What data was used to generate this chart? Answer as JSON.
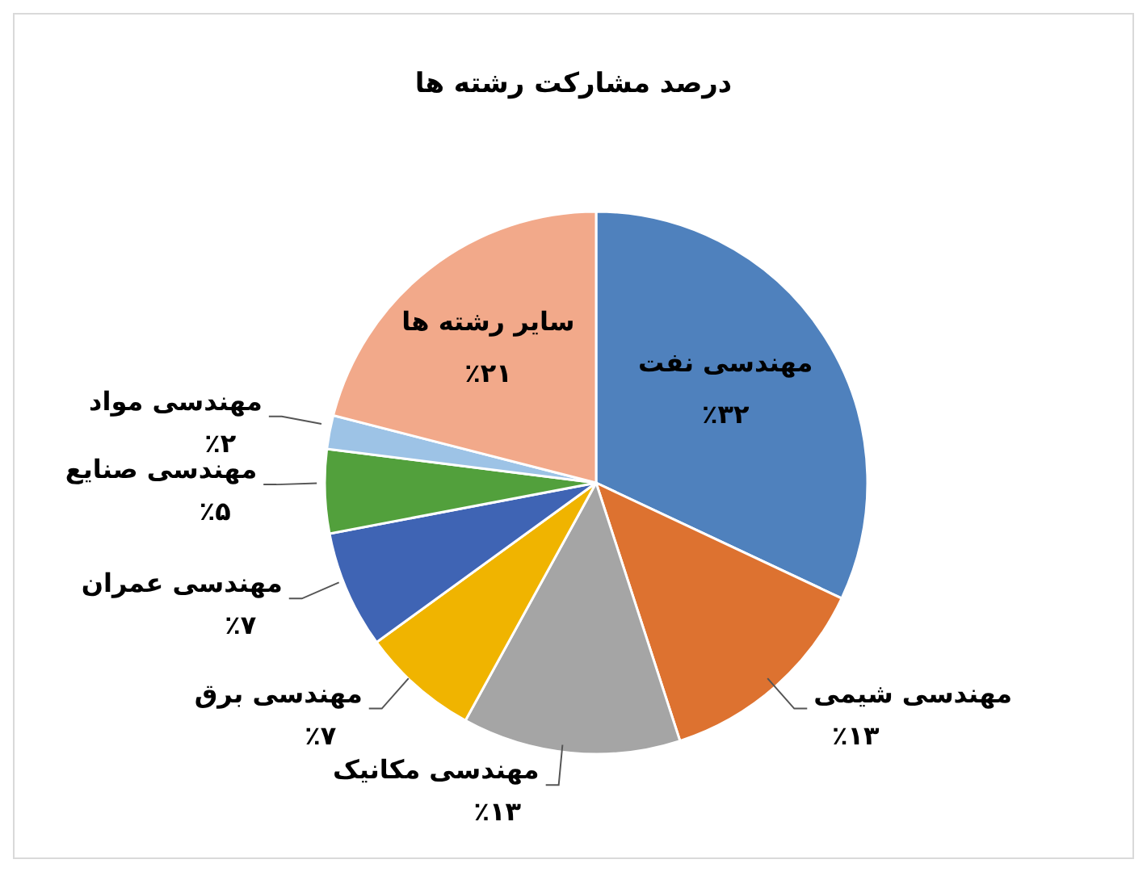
{
  "chart_data": {
    "type": "pie",
    "title": "درصد مشارکت رشته ها",
    "categories": [
      "مهندسی نفت",
      "مهندسی شیمی",
      "مهندسی مکانیک",
      "مهندسی برق",
      "مهندسی عمران",
      "مهندسی صنایع",
      "مهندسی مواد",
      "سایر رشته ها"
    ],
    "values": [
      32,
      13,
      13,
      7,
      7,
      5,
      2,
      21
    ],
    "value_labels": [
      "٪۳۲",
      "٪۱۳",
      "٪۱۳",
      "٪۷",
      "٪۷",
      "٪۵",
      "٪۲",
      "٪۲۱"
    ],
    "colors": [
      "#4f81bd",
      "#dd7230",
      "#a5a5a5",
      "#f0b400",
      "#3f64b4",
      "#52a03c",
      "#9dc3e6",
      "#f2a98a"
    ],
    "legend": false
  }
}
